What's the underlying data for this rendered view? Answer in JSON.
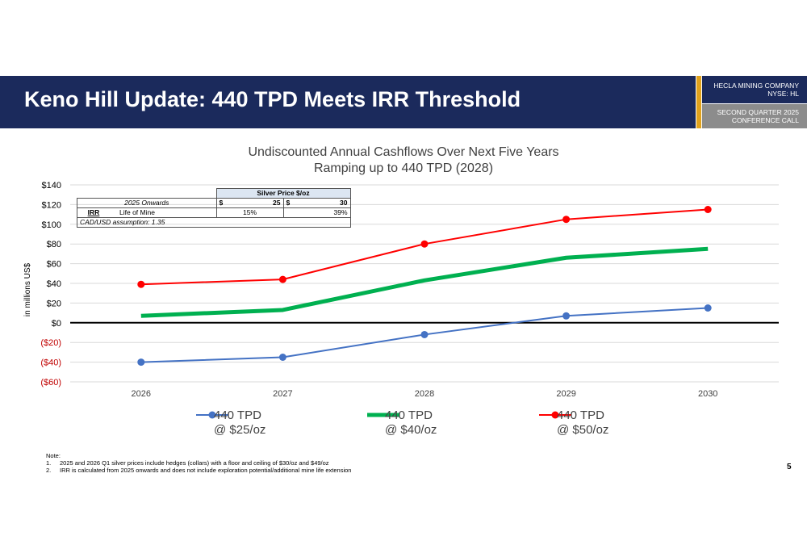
{
  "header": {
    "title": "Keno Hill Update: 440 TPD Meets IRR Threshold",
    "company_line1": "HECLA MINING COMPANY",
    "company_line2": "NYSE: HL",
    "call_line1": "SECOND QUARTER 2025",
    "call_line2": "CONFERENCE CALL"
  },
  "table": {
    "header": "Silver Price $/oz",
    "row1_label": "2025 Onwards",
    "price_25_cur": "$",
    "price_25": "25",
    "price_30_cur": "$",
    "price_30": "30",
    "irr_label": "IRR",
    "life_label": "Life of Mine",
    "irr_25": "15%",
    "irr_30": "39%",
    "assumption": "CAD/USD assumption: 1.35"
  },
  "colors": {
    "navy": "#1b2a5c",
    "gold": "#e1a21c",
    "grey": "#8c8c8c"
  },
  "chart_data": {
    "type": "line",
    "title": "Undiscounted Annual Cashflows Over Next Five Years",
    "subtitle": "Ramping up to 440 TPD (2028)",
    "ylabel": "in millions US$",
    "xlabel": "",
    "categories": [
      "2026",
      "2027",
      "2028",
      "2029",
      "2030"
    ],
    "ylim": [
      -60,
      140
    ],
    "yticks": [
      {
        "value": 140,
        "label": "$140",
        "color": "#000000"
      },
      {
        "value": 120,
        "label": "$120",
        "color": "#000000"
      },
      {
        "value": 100,
        "label": "$100",
        "color": "#000000"
      },
      {
        "value": 80,
        "label": "$80",
        "color": "#000000"
      },
      {
        "value": 60,
        "label": "$60",
        "color": "#000000"
      },
      {
        "value": 40,
        "label": "$40",
        "color": "#000000"
      },
      {
        "value": 20,
        "label": "$20",
        "color": "#000000"
      },
      {
        "value": 0,
        "label": "$0",
        "color": "#000000"
      },
      {
        "value": -20,
        "label": "($20)",
        "color": "#c00000"
      },
      {
        "value": -40,
        "label": "($40)",
        "color": "#c00000"
      },
      {
        "value": -60,
        "label": "($60)",
        "color": "#c00000"
      }
    ],
    "grid": true,
    "legend_position": "bottom",
    "series": [
      {
        "name": "440 TPD",
        "name_line2": "@ $25/oz",
        "color": "#4472c4",
        "markers": true,
        "weight": "thin",
        "values": [
          -40,
          -35,
          -12,
          7,
          15
        ]
      },
      {
        "name": "440 TPD",
        "name_line2": "@ $40/oz",
        "color": "#00b050",
        "markers": false,
        "weight": "thick",
        "values": [
          7,
          13,
          43,
          66,
          75
        ]
      },
      {
        "name": "440 TPD",
        "name_line2": "@ $50/oz",
        "color": "#ff0000",
        "markers": true,
        "weight": "thin",
        "values": [
          39,
          44,
          80,
          105,
          115
        ]
      }
    ]
  },
  "notes": {
    "heading": "Note:",
    "n1_num": "1.",
    "n1": "2025 and 2026 Q1 silver prices include hedges (collars) with a floor and ceiling of $30/oz and $49/oz",
    "n2_num": "2.",
    "n2": "IRR is calculated from 2025 onwards and does not include exploration potential/additional mine life extension"
  },
  "page_number": "5"
}
